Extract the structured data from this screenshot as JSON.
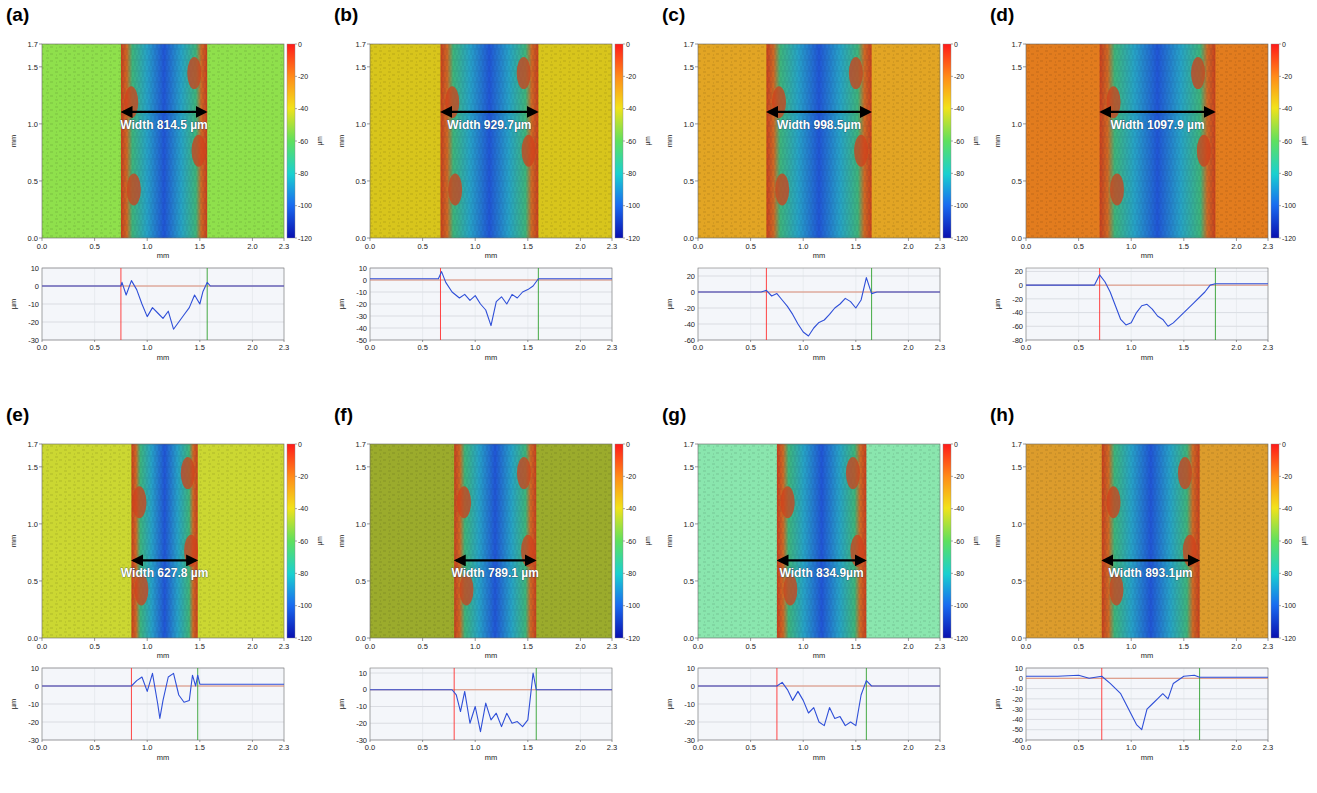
{
  "chart_data": [
    {
      "type": "line",
      "title": "(a)",
      "annotation": "Width 814.5 µm",
      "color": "#2f4fd8",
      "x": [
        0,
        0.7,
        0.75,
        0.76,
        0.8,
        0.85,
        0.9,
        0.95,
        1.0,
        1.05,
        1.1,
        1.15,
        1.2,
        1.25,
        1.3,
        1.35,
        1.4,
        1.45,
        1.5,
        1.53,
        1.57,
        1.6,
        2.3
      ],
      "values": [
        0,
        0,
        0,
        2,
        -5,
        3,
        -2,
        -10,
        -17,
        -12,
        -15,
        -18,
        -14,
        -24,
        -20,
        -16,
        -12,
        -5,
        -10,
        -3,
        2,
        0,
        0
      ],
      "cursors": [
        0.75,
        1.57
      ],
      "xlim": [
        0,
        2.3
      ],
      "xticks": [
        {
          "value": 0,
          "label": "0.0"
        },
        0.5,
        {
          "value": 1,
          "label": "1.0"
        },
        1.5,
        {
          "value": 2,
          "label": "2.0"
        },
        2.3
      ],
      "ylim": [
        -30,
        10
      ],
      "yticks": [
        -30,
        -20,
        -10,
        0,
        10
      ],
      "xlabel": "mm",
      "ylabel": "µm",
      "grid": true,
      "height_map": {
        "color": "#8fe04c",
        "xlim": [
          0,
          2.3
        ],
        "ylim": [
          0,
          1.7
        ],
        "xticks": [
          {
            "value": 0,
            "label": "0.0"
          },
          0.5,
          {
            "value": 1,
            "label": "1.0"
          },
          1.5,
          {
            "value": 2,
            "label": "2.0"
          },
          2.3
        ],
        "yticks": [
          {
            "value": 0,
            "label": "0.0"
          },
          0.5,
          {
            "value": 1,
            "label": "1.0"
          },
          1.5,
          1.7
        ],
        "xlabel": "mm",
        "ylabel": "mm",
        "colorbar_range": [
          -120,
          0
        ],
        "colorbar_ticks": [
          0,
          -20,
          -40,
          -60,
          -80,
          -100,
          -120
        ],
        "colorbar_label": "µm"
      }
    },
    {
      "type": "line",
      "title": "(b)",
      "annotation": "Width 929.7µm",
      "color": "#2f4fd8",
      "x": [
        0,
        0.65,
        0.68,
        0.72,
        0.78,
        0.85,
        0.9,
        0.95,
        1.0,
        1.05,
        1.1,
        1.15,
        1.2,
        1.25,
        1.3,
        1.35,
        1.4,
        1.45,
        1.5,
        1.55,
        1.6,
        2.3
      ],
      "values": [
        1,
        1,
        7,
        -2,
        -10,
        -15,
        -12,
        -17,
        -13,
        -20,
        -25,
        -38,
        -18,
        -14,
        -20,
        -12,
        -15,
        -10,
        -8,
        -5,
        1,
        1
      ],
      "cursors": [
        0.67,
        1.6
      ],
      "xlim": [
        0,
        2.3
      ],
      "xticks": [
        {
          "value": 0,
          "label": "0.0"
        },
        0.5,
        {
          "value": 1,
          "label": "1.0"
        },
        1.5,
        {
          "value": 2,
          "label": "2.0"
        },
        2.3
      ],
      "ylim": [
        -50,
        10
      ],
      "yticks": [
        -50,
        -40,
        -30,
        -20,
        -10,
        0,
        10
      ],
      "xlabel": "mm",
      "ylabel": "µm",
      "grid": true,
      "height_map": {
        "color": "#d8c51c",
        "xlim": [
          0,
          2.3
        ],
        "ylim": [
          0,
          1.7
        ],
        "xticks": [
          {
            "value": 0,
            "label": "0.0"
          },
          0.5,
          {
            "value": 1,
            "label": "1.0"
          },
          1.5,
          {
            "value": 2,
            "label": "2.0"
          },
          2.3
        ],
        "yticks": [
          {
            "value": 0,
            "label": "0.0"
          },
          0.5,
          {
            "value": 1,
            "label": "1.0"
          },
          1.5,
          1.7
        ],
        "xlabel": "mm",
        "ylabel": "mm",
        "colorbar_range": [
          -120,
          0
        ],
        "colorbar_ticks": [
          0,
          -20,
          -40,
          -60,
          -80,
          -100,
          -120
        ],
        "colorbar_label": "µm"
      }
    },
    {
      "type": "line",
      "title": "(c)",
      "annotation": "Width 998.5µm",
      "color": "#2f4fd8",
      "x": [
        0,
        0.6,
        0.65,
        0.7,
        0.75,
        0.8,
        0.85,
        0.9,
        0.95,
        1.0,
        1.05,
        1.1,
        1.15,
        1.2,
        1.25,
        1.3,
        1.35,
        1.4,
        1.45,
        1.5,
        1.55,
        1.6,
        1.65,
        1.7,
        2.3
      ],
      "values": [
        0,
        0,
        2,
        -5,
        -2,
        -10,
        -18,
        -28,
        -40,
        -50,
        -55,
        -45,
        -38,
        -35,
        -28,
        -20,
        -15,
        -8,
        -12,
        -20,
        -10,
        18,
        -2,
        0,
        0
      ],
      "cursors": [
        0.65,
        1.65
      ],
      "xlim": [
        0,
        2.3
      ],
      "xticks": [
        {
          "value": 0,
          "label": "0.0"
        },
        0.5,
        {
          "value": 1,
          "label": "1.0"
        },
        1.5,
        {
          "value": 2,
          "label": "2.0"
        },
        2.3
      ],
      "ylim": [
        -60,
        30
      ],
      "yticks": [
        -60,
        -40,
        -20,
        0,
        20
      ],
      "xlabel": "mm",
      "ylabel": "µm",
      "grid": true,
      "height_map": {
        "color": "#e2a524",
        "xlim": [
          0,
          2.3
        ],
        "ylim": [
          0,
          1.7
        ],
        "xticks": [
          {
            "value": 0,
            "label": "0.0"
          },
          0.5,
          {
            "value": 1,
            "label": "1.0"
          },
          1.5,
          {
            "value": 2,
            "label": "2.0"
          },
          2.3
        ],
        "yticks": [
          {
            "value": 0,
            "label": "0.0"
          },
          0.5,
          {
            "value": 1,
            "label": "1.0"
          },
          1.5,
          1.7
        ],
        "xlabel": "mm",
        "ylabel": "mm",
        "colorbar_range": [
          -120,
          0
        ],
        "colorbar_ticks": [
          0,
          -20,
          -40,
          -60,
          -80,
          -100,
          -120
        ],
        "colorbar_label": "µm"
      }
    },
    {
      "type": "line",
      "title": "(d)",
      "annotation": "Width 1097.9 µm",
      "color": "#2f4fd8",
      "x": [
        0,
        0.65,
        0.7,
        0.75,
        0.8,
        0.85,
        0.9,
        0.95,
        1.0,
        1.05,
        1.1,
        1.15,
        1.2,
        1.25,
        1.3,
        1.35,
        1.4,
        1.5,
        1.6,
        1.7,
        1.75,
        1.8,
        2.3
      ],
      "values": [
        0,
        0,
        15,
        5,
        -10,
        -30,
        -50,
        -58,
        -55,
        -40,
        -30,
        -28,
        -35,
        -45,
        -50,
        -60,
        -55,
        -40,
        -25,
        -10,
        0,
        2,
        2
      ],
      "cursors": [
        0.7,
        1.8
      ],
      "xlim": [
        0,
        2.3
      ],
      "xticks": [
        {
          "value": 0,
          "label": "0.0"
        },
        0.5,
        {
          "value": 1,
          "label": "1.0"
        },
        1.5,
        {
          "value": 2,
          "label": "2.0"
        },
        2.3
      ],
      "ylim": [
        -80,
        25
      ],
      "yticks": [
        -80,
        -60,
        -40,
        -20,
        0,
        20
      ],
      "xlabel": "mm",
      "ylabel": "µm",
      "grid": true,
      "height_map": {
        "color": "#e27c1e",
        "xlim": [
          0,
          2.3
        ],
        "ylim": [
          0,
          1.7
        ],
        "xticks": [
          {
            "value": 0,
            "label": "0.0"
          },
          0.5,
          {
            "value": 1,
            "label": "1.0"
          },
          1.5,
          {
            "value": 2,
            "label": "2.0"
          },
          2.3
        ],
        "yticks": [
          {
            "value": 0,
            "label": "0.0"
          },
          0.5,
          {
            "value": 1,
            "label": "1.0"
          },
          1.5,
          1.7
        ],
        "xlabel": "mm",
        "ylabel": "mm",
        "colorbar_range": [
          -120,
          0
        ],
        "colorbar_ticks": [
          0,
          -20,
          -40,
          -60,
          -80,
          -100,
          -120
        ],
        "colorbar_label": "µm"
      }
    },
    {
      "type": "line",
      "title": "(e)",
      "annotation": "Width 627.8 µm",
      "color": "#2f4fd8",
      "x": [
        0,
        0.85,
        0.9,
        0.95,
        1.0,
        1.05,
        1.1,
        1.12,
        1.15,
        1.2,
        1.25,
        1.3,
        1.35,
        1.4,
        1.43,
        1.46,
        1.48,
        1.5,
        2.3
      ],
      "values": [
        0,
        0,
        3,
        5,
        -3,
        7,
        -10,
        -18,
        -8,
        5,
        7,
        -5,
        -9,
        -8,
        6,
        0,
        6,
        1,
        1
      ],
      "cursors": [
        0.85,
        1.48
      ],
      "xlim": [
        0,
        2.3
      ],
      "xticks": [
        {
          "value": 0,
          "label": "0.0"
        },
        0.5,
        {
          "value": 1,
          "label": "1.0"
        },
        1.5,
        {
          "value": 2,
          "label": "2.0"
        },
        2.3
      ],
      "ylim": [
        -30,
        10
      ],
      "yticks": [
        -30,
        -20,
        -10,
        0,
        10
      ],
      "xlabel": "mm",
      "ylabel": "µm",
      "grid": true,
      "height_map": {
        "color": "#cbd732",
        "xlim": [
          0,
          2.3
        ],
        "ylim": [
          0,
          1.7
        ],
        "xticks": [
          {
            "value": 0,
            "label": "0.0"
          },
          0.5,
          {
            "value": 1,
            "label": "1.0"
          },
          1.5,
          {
            "value": 2,
            "label": "2.0"
          },
          2.3
        ],
        "yticks": [
          {
            "value": 0,
            "label": "0.0"
          },
          0.5,
          {
            "value": 1,
            "label": "1.0"
          },
          1.5,
          1.7
        ],
        "xlabel": "mm",
        "ylabel": "mm",
        "colorbar_range": [
          -120,
          0
        ],
        "colorbar_ticks": [
          0,
          -20,
          -40,
          -60,
          -80,
          -100,
          -120
        ],
        "colorbar_label": "µm"
      }
    },
    {
      "type": "line",
      "title": "(f)",
      "annotation": "Width 789.1 µm",
      "color": "#2f4fd8",
      "x": [
        0,
        0.78,
        0.82,
        0.86,
        0.9,
        0.95,
        1.0,
        1.05,
        1.1,
        1.15,
        1.2,
        1.25,
        1.3,
        1.35,
        1.4,
        1.45,
        1.5,
        1.55,
        1.58,
        2.3
      ],
      "values": [
        0,
        0,
        -3,
        -13,
        -1,
        -20,
        -10,
        -25,
        -8,
        -18,
        -14,
        -22,
        -14,
        -20,
        -19,
        -22,
        -18,
        10,
        0,
        0
      ],
      "cursors": [
        0.8,
        1.58
      ],
      "xlim": [
        0,
        2.3
      ],
      "xticks": [
        {
          "value": 0,
          "label": "0.0"
        },
        0.5,
        {
          "value": 1,
          "label": "1.0"
        },
        1.5,
        {
          "value": 2,
          "label": "2.0"
        },
        2.3
      ],
      "ylim": [
        -30,
        13
      ],
      "yticks": [
        -30,
        -20,
        -10,
        0,
        10
      ],
      "xlabel": "mm",
      "ylabel": "µm",
      "grid": true,
      "height_map": {
        "color": "#9bab2c",
        "xlim": [
          0,
          2.3
        ],
        "ylim": [
          0,
          1.7
        ],
        "xticks": [
          {
            "value": 0,
            "label": "0.0"
          },
          0.5,
          {
            "value": 1,
            "label": "1.0"
          },
          1.5,
          {
            "value": 2,
            "label": "2.0"
          },
          2.3
        ],
        "yticks": [
          {
            "value": 0,
            "label": "0.0"
          },
          0.5,
          {
            "value": 1,
            "label": "1.0"
          },
          1.5,
          1.7
        ],
        "xlabel": "mm",
        "ylabel": "mm",
        "colorbar_range": [
          -120,
          0
        ],
        "colorbar_ticks": [
          0,
          -20,
          -40,
          -60,
          -80,
          -100,
          -120
        ],
        "colorbar_label": "µm"
      }
    },
    {
      "type": "line",
      "title": "(g)",
      "annotation": "Width 834.9µm",
      "color": "#2f4fd8",
      "x": [
        0,
        0.75,
        0.8,
        0.85,
        0.9,
        0.95,
        1.0,
        1.05,
        1.1,
        1.15,
        1.2,
        1.25,
        1.3,
        1.35,
        1.4,
        1.45,
        1.5,
        1.55,
        1.6,
        1.65,
        2.3
      ],
      "values": [
        0,
        0,
        2,
        -2,
        -8,
        -3,
        -8,
        -15,
        -12,
        -20,
        -22,
        -12,
        -18,
        -17,
        -22,
        -20,
        -22,
        -5,
        3,
        0,
        0
      ],
      "cursors": [
        0.75,
        1.6
      ],
      "xlim": [
        0,
        2.3
      ],
      "xticks": [
        {
          "value": 0,
          "label": "0.0"
        },
        0.5,
        {
          "value": 1,
          "label": "1.0"
        },
        1.5,
        {
          "value": 2,
          "label": "2.0"
        },
        2.3
      ],
      "ylim": [
        -30,
        10
      ],
      "yticks": [
        -30,
        -20,
        -10,
        0,
        10
      ],
      "xlabel": "mm",
      "ylabel": "µm",
      "grid": true,
      "height_map": {
        "color": "#8ae6ae",
        "xlim": [
          0,
          2.3
        ],
        "ylim": [
          0,
          1.7
        ],
        "xticks": [
          {
            "value": 0,
            "label": "0.0"
          },
          0.5,
          {
            "value": 1,
            "label": "1.0"
          },
          1.5,
          {
            "value": 2,
            "label": "2.0"
          },
          2.3
        ],
        "yticks": [
          {
            "value": 0,
            "label": "0.0"
          },
          0.5,
          {
            "value": 1,
            "label": "1.0"
          },
          1.5,
          1.7
        ],
        "xlabel": "mm",
        "ylabel": "mm",
        "colorbar_range": [
          -120,
          0
        ],
        "colorbar_ticks": [
          0,
          -20,
          -40,
          -60,
          -80,
          -100,
          -120
        ],
        "colorbar_label": "µm"
      }
    },
    {
      "type": "line",
      "title": "(h)",
      "annotation": "Width 893.1µm",
      "color": "#2f4fd8",
      "x": [
        0,
        0.3,
        0.5,
        0.6,
        0.72,
        0.8,
        0.9,
        0.95,
        1.0,
        1.05,
        1.1,
        1.15,
        1.2,
        1.25,
        1.3,
        1.35,
        1.4,
        1.5,
        1.6,
        1.65,
        2.3
      ],
      "values": [
        2,
        2,
        3,
        0,
        2,
        -5,
        -15,
        -25,
        -35,
        -45,
        -50,
        -30,
        -25,
        -20,
        -15,
        -20,
        -5,
        2,
        3,
        1,
        1
      ],
      "cursors": [
        0.72,
        1.65
      ],
      "xlim": [
        0,
        2.3
      ],
      "xticks": [
        {
          "value": 0,
          "label": "0.0"
        },
        0.5,
        {
          "value": 1,
          "label": "1.0"
        },
        1.5,
        {
          "value": 2,
          "label": "2.0"
        },
        2.3
      ],
      "ylim": [
        -60,
        10
      ],
      "yticks": [
        -60,
        -50,
        -40,
        -30,
        -20,
        -10,
        0,
        10
      ],
      "xlabel": "mm",
      "ylabel": "µm",
      "grid": true,
      "height_map": {
        "color": "#dc9c2c",
        "xlim": [
          0,
          2.3
        ],
        "ylim": [
          0,
          1.7
        ],
        "xticks": [
          {
            "value": 0,
            "label": "0.0"
          },
          0.5,
          {
            "value": 1,
            "label": "1.0"
          },
          1.5,
          {
            "value": 2,
            "label": "2.0"
          },
          2.3
        ],
        "yticks": [
          {
            "value": 0,
            "label": "0.0"
          },
          0.5,
          {
            "value": 1,
            "label": "1.0"
          },
          1.5,
          1.7
        ],
        "xlabel": "mm",
        "ylabel": "mm",
        "colorbar_range": [
          -120,
          0
        ],
        "colorbar_ticks": [
          0,
          -20,
          -40,
          -60,
          -80,
          -100,
          -120
        ],
        "colorbar_label": "µm"
      }
    }
  ]
}
